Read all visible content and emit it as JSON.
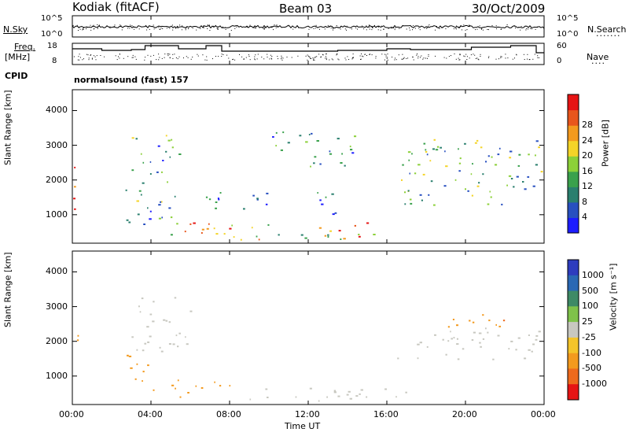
{
  "header": {
    "station": "Kodiak (fitACF)",
    "beam": "Beam 03",
    "date": "30/Oct/2009"
  },
  "panel_nsky": {
    "left_label": "N.Sky",
    "right_label": "N.Search",
    "left_ticks": [
      "10^5",
      "10^0"
    ],
    "right_ticks": [
      "10^5",
      "10^0"
    ]
  },
  "panel_freq": {
    "left_label_line1": "Freq.",
    "left_label_line2": "[MHz]",
    "right_label": "Nave",
    "left_ticks": [
      "18",
      "8"
    ],
    "right_ticks": [
      "60",
      "0"
    ]
  },
  "cpid": {
    "label": "CPID",
    "text": "normalsound (fast) 157"
  },
  "chart_data": [
    {
      "type": "heatmap",
      "title": "",
      "quantity": "Power",
      "ylabel": "Slant Range [km]",
      "xlabel": "",
      "ylim": [
        180,
        4600
      ],
      "y_ticks": [
        1000,
        2000,
        3000,
        4000
      ],
      "colorbar": {
        "label": "Power [dB]",
        "ticks": [
          "4",
          "8",
          "12",
          "16",
          "20",
          "24",
          "28"
        ],
        "colors": [
          "#1c1cff",
          "#2850c0",
          "#2a7f6e",
          "#3aa14c",
          "#8cd038",
          "#f4d428",
          "#f39a1e",
          "#e8561c",
          "#e61414"
        ]
      },
      "regions": [
        {
          "t_start": 0.0,
          "t_end": 0.3,
          "r_start": 400,
          "r_end": 2600,
          "level": 24
        },
        {
          "t_start": 2.7,
          "t_end": 5.5,
          "r_start": 700,
          "r_end": 3300,
          "level": 12
        },
        {
          "t_start": 4.0,
          "t_end": 16.5,
          "r_start": 300,
          "r_end": 800,
          "level": 22
        },
        {
          "t_start": 6.0,
          "t_end": 10.0,
          "r_start": 1100,
          "r_end": 1700,
          "level": 8
        },
        {
          "t_start": 10.0,
          "t_end": 14.5,
          "r_start": 2400,
          "r_end": 3400,
          "level": 10
        },
        {
          "t_start": 12.0,
          "t_end": 13.5,
          "r_start": 1000,
          "r_end": 1800,
          "level": 9
        },
        {
          "t_start": 16.5,
          "t_end": 24.0,
          "r_start": 1300,
          "r_end": 3200,
          "level": 14
        }
      ]
    },
    {
      "type": "heatmap",
      "title": "",
      "quantity": "Velocity",
      "ylabel": "Slant Range [km]",
      "xlabel": "Time UT",
      "ylim": [
        180,
        4600
      ],
      "y_ticks": [
        1000,
        2000,
        3000,
        4000
      ],
      "x_ticks": [
        "00:00",
        "04:00",
        "08:00",
        "12:00",
        "16:00",
        "20:00",
        "00:00"
      ],
      "colorbar": {
        "label": "Velocity [m s⁻¹]",
        "ticks": [
          "1000",
          "500",
          "100",
          "25",
          "-25",
          "-100",
          "-500",
          "-1000"
        ],
        "colors": [
          "#2e3cbe",
          "#2a68b4",
          "#3e8a66",
          "#7fc24a",
          "#c8c8c0",
          "#f4c42a",
          "#f39a1e",
          "#ee6a1c",
          "#e61414"
        ]
      },
      "regions": [
        {
          "t_start": 0.0,
          "t_end": 0.3,
          "r_start": 1000,
          "r_end": 2300,
          "level": -200
        },
        {
          "t_start": 2.7,
          "t_end": 4.0,
          "r_start": 700,
          "r_end": 1800,
          "level": -400
        },
        {
          "t_start": 3.0,
          "t_end": 6.0,
          "r_start": 1700,
          "r_end": 3300,
          "level": 0
        },
        {
          "t_start": 4.0,
          "t_end": 8.0,
          "r_start": 400,
          "r_end": 900,
          "level": -200
        },
        {
          "t_start": 8.0,
          "t_end": 17.0,
          "r_start": 300,
          "r_end": 700,
          "level": 0
        },
        {
          "t_start": 16.5,
          "t_end": 24.0,
          "r_start": 1500,
          "r_end": 2400,
          "level": 0
        },
        {
          "t_start": 19.0,
          "t_end": 22.0,
          "r_start": 2400,
          "r_end": 3000,
          "level": -400
        }
      ]
    }
  ]
}
